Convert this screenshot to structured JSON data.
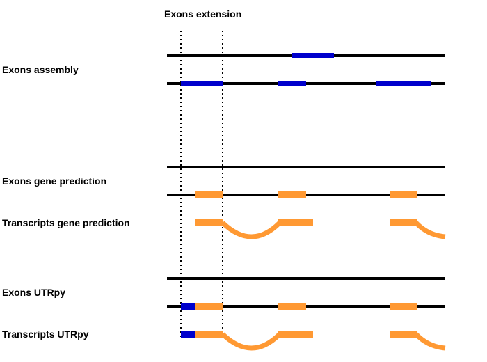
{
  "title": "Exons extension",
  "labels": {
    "exons_assembly": "Exons assembly",
    "exons_gene_prediction": "Exons gene prediction",
    "transcripts_gene_prediction": "Transcripts gene prediction",
    "exons_utrpy": "Exons UTRpy",
    "transcripts_utrpy": "Transcripts UTRpy"
  },
  "colors": {
    "line": "#000000",
    "assembly_exon": "#0000cc",
    "predicted_exon": "#ff9933"
  }
}
